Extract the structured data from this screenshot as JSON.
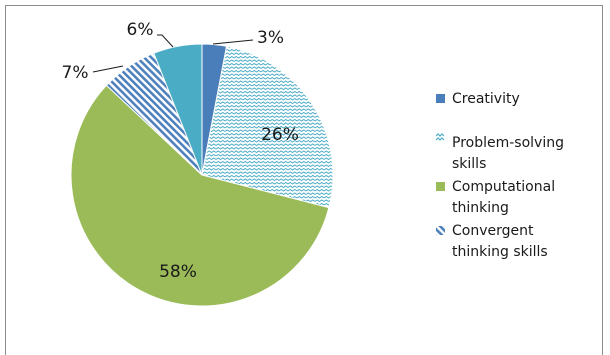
{
  "chart_data": {
    "type": "pie",
    "title": "",
    "legend_position": "right",
    "slices": [
      {
        "label": "Creativity",
        "value": 3,
        "display": "3%",
        "color": "#4a7ebb",
        "pattern": "solid"
      },
      {
        "label": "Problem-solving skills",
        "value": 26,
        "display": "26%",
        "color": "#4aacc6",
        "pattern": "wave"
      },
      {
        "label": "Computational thinking",
        "value": 58,
        "display": "58%",
        "color": "#9bbb59",
        "pattern": "solid"
      },
      {
        "label": "Convergent thinking skills",
        "value": 7,
        "display": "7%",
        "color": "#4f81bd",
        "pattern": "diagonal"
      },
      {
        "label": "",
        "value": 6,
        "display": "6%",
        "color": "#4bacc6",
        "pattern": "solid"
      }
    ],
    "legend": [
      {
        "lines": [
          "Creativity"
        ]
      },
      {
        "lines": [
          "Problem-solving",
          "skills"
        ]
      },
      {
        "lines": [
          "Computational",
          "thinking"
        ]
      },
      {
        "lines": [
          "Convergent",
          "thinking skills"
        ]
      }
    ]
  }
}
